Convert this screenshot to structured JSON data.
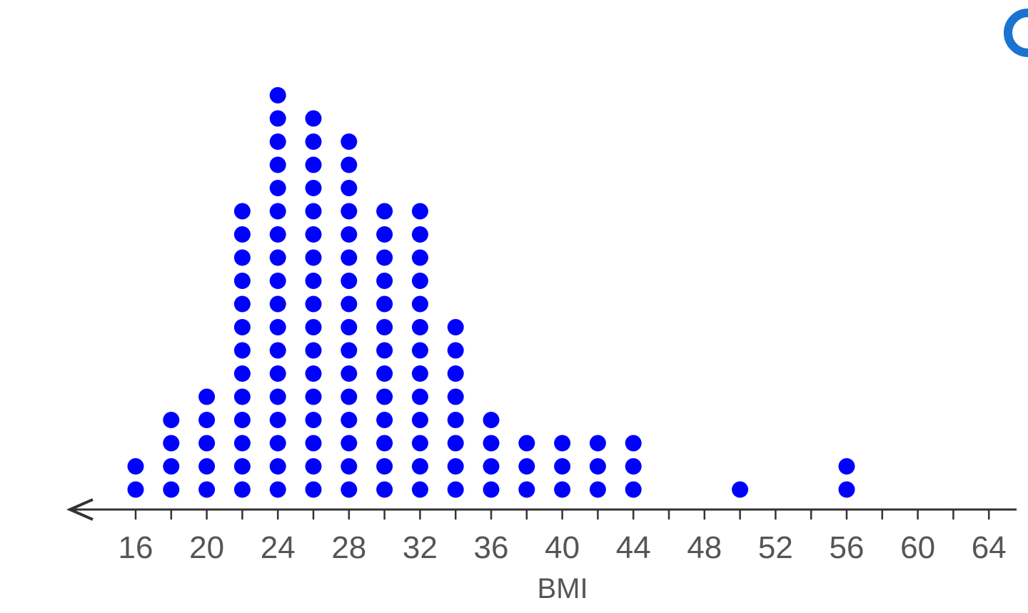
{
  "chart_data": {
    "type": "dot_plot",
    "xlabel": "BMI",
    "ylabel": "",
    "title": "",
    "xlim": [
      12,
      65
    ],
    "tick_values": [
      16,
      18,
      20,
      22,
      24,
      26,
      28,
      30,
      32,
      34,
      36,
      38,
      40,
      42,
      44,
      46,
      48,
      50,
      52,
      54,
      56,
      58,
      60,
      62,
      64
    ],
    "tick_labels": [
      "16",
      "20",
      "24",
      "28",
      "32",
      "36",
      "40",
      "44",
      "48",
      "52",
      "56",
      "60",
      "64"
    ],
    "dot_color": "#0000ff",
    "axis_color": "#333333",
    "points": [
      {
        "x": 16,
        "count": 2
      },
      {
        "x": 18,
        "count": 4
      },
      {
        "x": 20,
        "count": 5
      },
      {
        "x": 22,
        "count": 13
      },
      {
        "x": 24,
        "count": 18
      },
      {
        "x": 26,
        "count": 17
      },
      {
        "x": 28,
        "count": 16
      },
      {
        "x": 30,
        "count": 13
      },
      {
        "x": 32,
        "count": 13
      },
      {
        "x": 34,
        "count": 8
      },
      {
        "x": 36,
        "count": 4
      },
      {
        "x": 38,
        "count": 3
      },
      {
        "x": 40,
        "count": 3
      },
      {
        "x": 42,
        "count": 3
      },
      {
        "x": 44,
        "count": 3
      },
      {
        "x": 50,
        "count": 1
      },
      {
        "x": 56,
        "count": 2
      }
    ]
  },
  "ui": {
    "corner_icon": "partial-circle-icon",
    "accent": "#1a73d0"
  }
}
